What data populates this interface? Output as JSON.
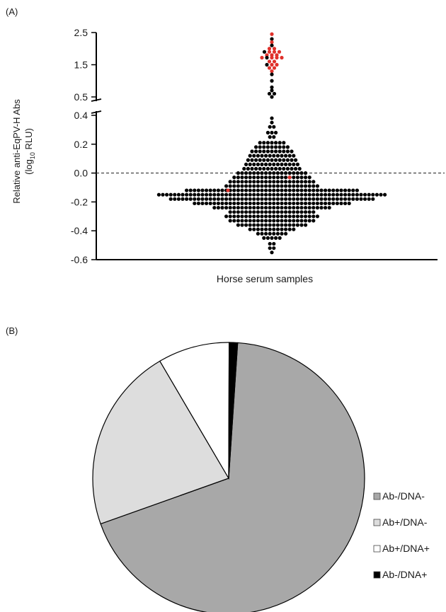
{
  "panels": {
    "a_label": "(A)",
    "b_label": "(B)"
  },
  "chart_data": [
    {
      "type": "scatter",
      "subtype": "beeswarm with broken y-axis",
      "ylabel_line1": "Relative anti-EqPV-H Abs",
      "ylabel_line2_prefix": "(log",
      "ylabel_line2_sub": "10",
      "ylabel_line2_suffix": " RLU)",
      "xlabel": "Horse serum samples",
      "ylim_lower": [
        -0.6,
        0.4
      ],
      "ylim_upper": [
        0.5,
        2.5
      ],
      "yticks_lower": [
        "-0.6",
        "-0.4",
        "-0.2",
        "0.0",
        "0.2",
        "0.4"
      ],
      "yticks_upper": [
        "0.5",
        "1.5",
        "2.5"
      ],
      "reference_line": 0.0,
      "colors": {
        "negative": "#000000",
        "positive": "#e0312b",
        "reference": "#333333"
      },
      "positive_values": [
        2.45,
        2.2,
        2.0,
        1.95,
        1.9,
        1.9,
        1.85,
        1.8,
        1.78,
        1.75,
        1.72,
        1.7,
        1.68,
        1.65,
        1.6,
        1.55,
        1.5,
        1.45,
        1.4,
        1.35,
        1.3,
        -0.03,
        -0.12
      ],
      "negative_high_values": [
        2.3,
        2.1,
        1.9,
        1.7,
        1.5,
        1.2,
        1.0,
        0.8,
        0.7,
        0.6,
        0.55,
        0.5
      ],
      "negative_bins": [
        {
          "y": 0.38,
          "n": 1
        },
        {
          "y": 0.35,
          "n": 1
        },
        {
          "y": 0.32,
          "n": 2
        },
        {
          "y": 0.28,
          "n": 3
        },
        {
          "y": 0.25,
          "n": 2
        },
        {
          "y": 0.21,
          "n": 7
        },
        {
          "y": 0.18,
          "n": 9
        },
        {
          "y": 0.15,
          "n": 11
        },
        {
          "y": 0.12,
          "n": 12
        },
        {
          "y": 0.09,
          "n": 13
        },
        {
          "y": 0.06,
          "n": 14
        },
        {
          "y": 0.03,
          "n": 15
        },
        {
          "y": 0.0,
          "n": 18
        },
        {
          "y": -0.03,
          "n": 20
        },
        {
          "y": -0.06,
          "n": 22
        },
        {
          "y": -0.09,
          "n": 24
        },
        {
          "y": -0.12,
          "n": 44
        },
        {
          "y": -0.15,
          "n": 58
        },
        {
          "y": -0.18,
          "n": 52
        },
        {
          "y": -0.21,
          "n": 40
        },
        {
          "y": -0.24,
          "n": 30
        },
        {
          "y": -0.27,
          "n": 22
        },
        {
          "y": -0.3,
          "n": 24
        },
        {
          "y": -0.33,
          "n": 22
        },
        {
          "y": -0.36,
          "n": 18
        },
        {
          "y": -0.39,
          "n": 12
        },
        {
          "y": -0.42,
          "n": 8
        },
        {
          "y": -0.45,
          "n": 5
        },
        {
          "y": -0.49,
          "n": 2
        },
        {
          "y": -0.52,
          "n": 2
        },
        {
          "y": -0.55,
          "n": 1
        }
      ]
    },
    {
      "type": "pie",
      "slices": [
        {
          "label": "Ab-/DNA-",
          "value": 68.5,
          "color": "#a8a8a8"
        },
        {
          "label": "Ab+/DNA-",
          "value": 22.0,
          "color": "#dddddd"
        },
        {
          "label": "Ab+/DNA+",
          "value": 8.5,
          "color": "#ffffff"
        },
        {
          "label": "Ab-/DNA+",
          "value": 1.0,
          "color": "#000000"
        }
      ],
      "legend_position": "right"
    }
  ]
}
